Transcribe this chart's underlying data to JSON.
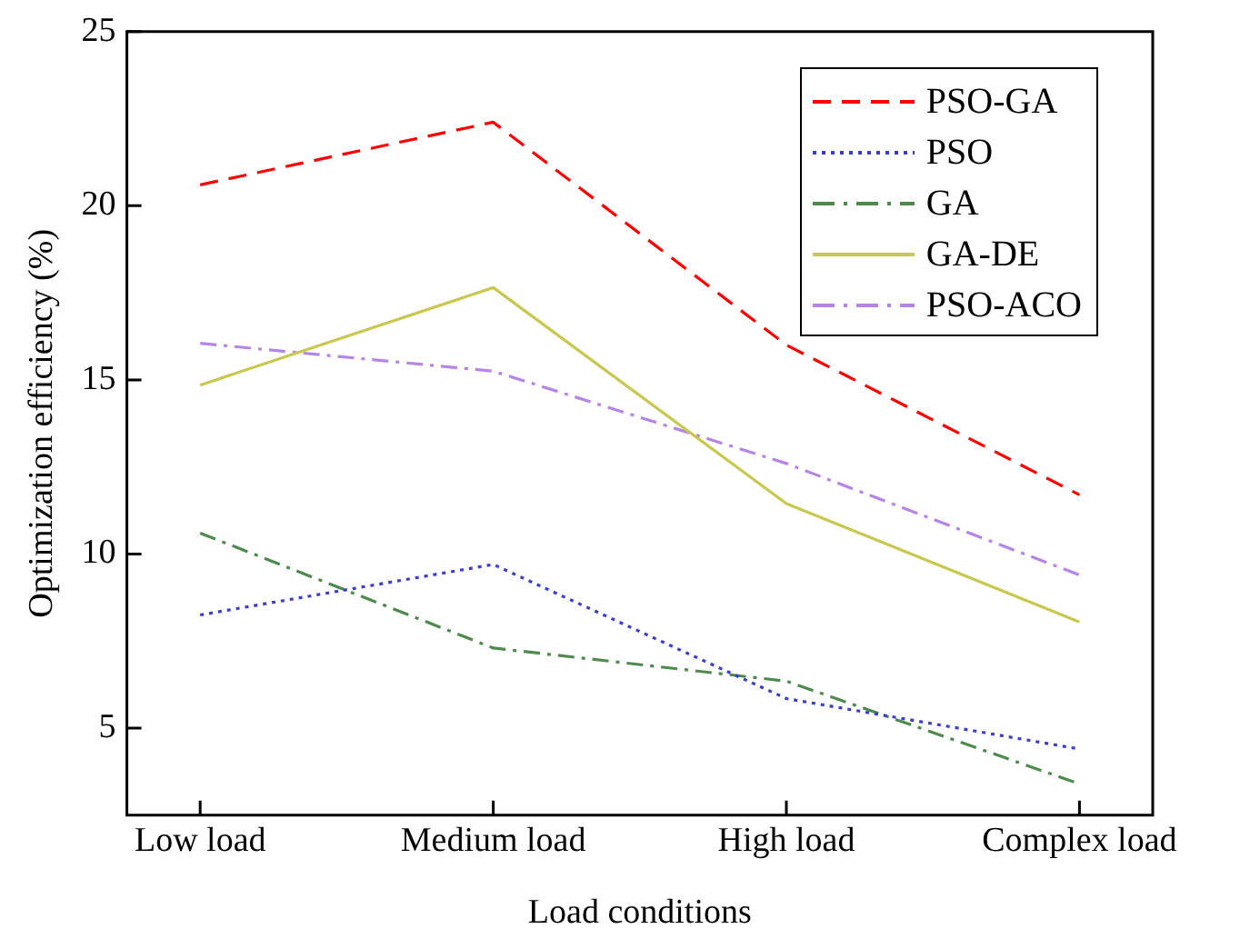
{
  "chart_data": {
    "type": "line",
    "xlabel": "Load conditions",
    "ylabel": "Optimization efficiency (%)",
    "categories": [
      "Low load",
      "Medium load",
      "High load",
      "Complex load"
    ],
    "series": [
      {
        "name": "PSO-GA",
        "color": "#ff0000",
        "line_style": "dashed",
        "values": [
          20.6,
          22.4,
          16.0,
          11.7
        ]
      },
      {
        "name": "PSO",
        "color": "#3c3cd0",
        "line_style": "dotted",
        "values": [
          8.25,
          9.7,
          5.85,
          4.4
        ]
      },
      {
        "name": "GA",
        "color": "#4e8a4e",
        "line_style": "dashdot",
        "values": [
          10.6,
          7.3,
          6.35,
          3.4
        ]
      },
      {
        "name": "GA-DE",
        "color": "#c8c850",
        "line_style": "solid",
        "values": [
          14.85,
          17.65,
          11.45,
          8.05
        ]
      },
      {
        "name": "PSO-ACO",
        "color": "#b585e6",
        "line_style": "dashdot",
        "values": [
          16.05,
          15.25,
          12.6,
          9.4
        ]
      }
    ],
    "ylim": [
      2.5,
      25
    ],
    "yticks": [
      5,
      10,
      15,
      20,
      25
    ],
    "grid": false,
    "legend": "top right",
    "marker": "none"
  }
}
